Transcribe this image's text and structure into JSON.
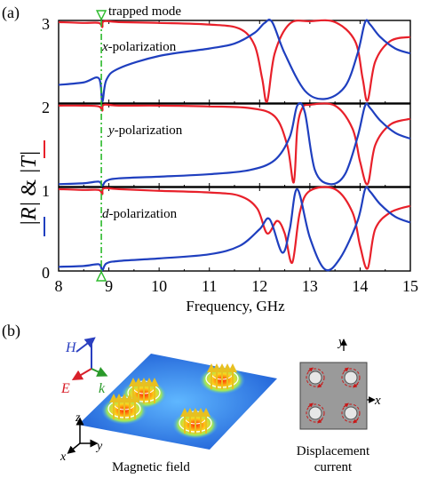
{
  "panel_a": {
    "label": "(a)",
    "annotation": "trapped mode",
    "ylabel_part1": "|R|",
    "ylabel_part2": " & ",
    "ylabel_part3": "|T|",
    "xlabel": "Frequency, GHz",
    "subplots": [
      {
        "pol_letter": "x",
        "pol_suffix": "-polarization",
        "top_tick": "3"
      },
      {
        "pol_letter": "y",
        "pol_suffix": "-polarization",
        "top_tick": "2"
      },
      {
        "pol_letter": "d",
        "pol_suffix": "-polarization",
        "top_tick": "1"
      }
    ],
    "bottom_tick": "0",
    "x_ticks": [
      "8",
      "9",
      "10",
      "11",
      "12",
      "13",
      "14",
      "15"
    ],
    "colors": {
      "R": "#e8202a",
      "T": "#1f3fbf",
      "marker": "#2dbb2d"
    }
  },
  "panel_b": {
    "label": "(b)",
    "H_label": "H",
    "E_label": "E",
    "k_label": "k",
    "axis_x": "x",
    "axis_y": "y",
    "axis_z": "z",
    "magnetic_caption": "Magnetic field",
    "displacement_caption_line1": "Displacement",
    "displacement_caption_line2": "current",
    "right_axis_x": "x",
    "right_axis_y": "y"
  },
  "chart_data": {
    "type": "line",
    "xlabel": "Frequency, GHz",
    "ylabel": "|R| & |T|",
    "xlim": [
      8,
      15
    ],
    "ylim": [
      0,
      1
    ],
    "trapped_mode_frequency": 8.85,
    "subplots": [
      {
        "title": "x-polarization",
        "series": [
          {
            "name": "|R|",
            "color": "#e8202a",
            "x": [
              8.0,
              8.5,
              8.8,
              8.87,
              8.9,
              9.2,
              10.0,
              11.0,
              11.6,
              11.9,
              12.05,
              12.15,
              12.3,
              12.6,
              13.0,
              13.5,
              13.9,
              14.05,
              14.15,
              14.3,
              14.6,
              15.0
            ],
            "y": [
              0.98,
              0.97,
              0.97,
              0.92,
              0.99,
              0.98,
              0.97,
              0.95,
              0.9,
              0.7,
              0.3,
              0.02,
              0.6,
              0.96,
              0.99,
              0.98,
              0.75,
              0.3,
              0.03,
              0.5,
              0.75,
              0.8
            ]
          },
          {
            "name": "|T|",
            "color": "#1f3fbf",
            "x": [
              8.0,
              8.5,
              8.8,
              8.87,
              8.95,
              9.2,
              10.0,
              11.0,
              11.5,
              11.9,
              12.1,
              12.25,
              12.5,
              12.9,
              13.3,
              13.7,
              13.95,
              14.1,
              14.2,
              14.4,
              14.7,
              15.0
            ],
            "y": [
              0.22,
              0.25,
              0.3,
              0.02,
              0.28,
              0.42,
              0.57,
              0.66,
              0.72,
              0.85,
              0.97,
              0.98,
              0.6,
              0.15,
              0.05,
              0.2,
              0.6,
              0.98,
              0.95,
              0.8,
              0.66,
              0.6
            ]
          }
        ]
      },
      {
        "title": "y-polarization",
        "series": [
          {
            "name": "|R|",
            "color": "#e8202a",
            "x": [
              8.0,
              8.5,
              8.8,
              8.87,
              8.9,
              9.2,
              10.0,
              11.0,
              11.8,
              12.3,
              12.55,
              12.68,
              12.75,
              12.85,
              13.0,
              13.5,
              13.85,
              14.0,
              14.15,
              14.3,
              14.6,
              15.0
            ],
            "y": [
              0.98,
              0.98,
              0.97,
              0.92,
              0.99,
              0.98,
              0.98,
              0.97,
              0.95,
              0.85,
              0.5,
              0.05,
              0.7,
              0.95,
              0.99,
              0.98,
              0.7,
              0.3,
              0.03,
              0.5,
              0.75,
              0.82
            ]
          },
          {
            "name": "|T|",
            "color": "#1f3fbf",
            "x": [
              8.0,
              8.5,
              8.8,
              8.87,
              8.95,
              9.2,
              10.0,
              11.0,
              11.8,
              12.3,
              12.6,
              12.75,
              12.9,
              13.1,
              13.4,
              13.7,
              13.95,
              14.1,
              14.2,
              14.4,
              14.7,
              15.0
            ],
            "y": [
              0.03,
              0.04,
              0.06,
              0.01,
              0.07,
              0.1,
              0.12,
              0.15,
              0.2,
              0.32,
              0.6,
              0.98,
              0.9,
              0.2,
              0.03,
              0.15,
              0.6,
              0.98,
              0.95,
              0.8,
              0.65,
              0.58
            ]
          }
        ]
      },
      {
        "title": "d-polarization",
        "series": [
          {
            "name": "|R|",
            "color": "#e8202a",
            "x": [
              8.0,
              8.5,
              8.8,
              8.87,
              8.9,
              9.2,
              10.0,
              11.0,
              11.6,
              11.95,
              12.15,
              12.35,
              12.5,
              12.65,
              12.8,
              13.0,
              13.5,
              13.85,
              14.0,
              14.15,
              14.3,
              14.6,
              15.0
            ],
            "y": [
              0.98,
              0.97,
              0.97,
              0.92,
              0.99,
              0.98,
              0.96,
              0.94,
              0.9,
              0.75,
              0.45,
              0.6,
              0.45,
              0.1,
              0.7,
              0.96,
              0.98,
              0.7,
              0.3,
              0.03,
              0.5,
              0.7,
              0.78
            ]
          },
          {
            "name": "|T|",
            "color": "#1f3fbf",
            "x": [
              8.0,
              8.5,
              8.8,
              8.87,
              8.95,
              9.2,
              10.0,
              11.0,
              11.6,
              12.0,
              12.2,
              12.45,
              12.6,
              12.75,
              13.0,
              13.3,
              13.6,
              13.95,
              14.1,
              14.2,
              14.4,
              14.7,
              15.0
            ],
            "y": [
              0.05,
              0.06,
              0.08,
              0.01,
              0.09,
              0.12,
              0.15,
              0.2,
              0.3,
              0.5,
              0.62,
              0.22,
              0.5,
              0.98,
              0.4,
              0.02,
              0.15,
              0.6,
              0.98,
              0.95,
              0.8,
              0.65,
              0.58
            ]
          }
        ]
      }
    ]
  }
}
